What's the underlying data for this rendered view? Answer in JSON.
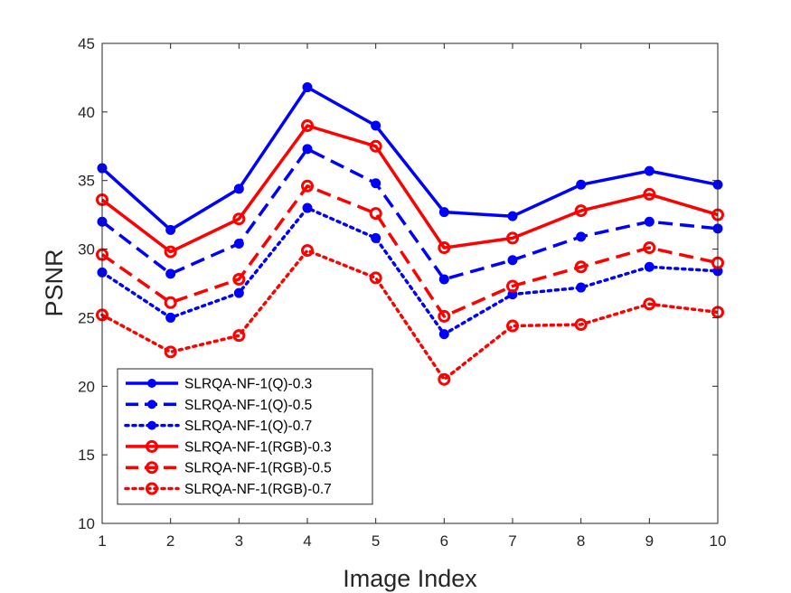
{
  "chart_data": {
    "type": "line",
    "title": "",
    "xlabel": "Image Index",
    "ylabel": "PSNR",
    "xlim": [
      1,
      10
    ],
    "ylim": [
      10,
      45
    ],
    "x": [
      1,
      2,
      3,
      4,
      5,
      6,
      7,
      8,
      9,
      10
    ],
    "xticks": [
      "1",
      "2",
      "3",
      "4",
      "5",
      "6",
      "7",
      "8",
      "9",
      "10"
    ],
    "yticks": [
      "10",
      "15",
      "20",
      "25",
      "30",
      "35",
      "40",
      "45"
    ],
    "grid": false,
    "legend_position": "bottom-left",
    "series": [
      {
        "name": "SLRQA-NF-1(Q)-0.3",
        "color": "#0000ff",
        "line_style": "solid",
        "marker": "filled-circle",
        "values": [
          35.9,
          31.4,
          34.4,
          41.8,
          39.0,
          32.7,
          32.4,
          34.7,
          35.7,
          34.7
        ]
      },
      {
        "name": "SLRQA-NF-1(Q)-0.5",
        "color": "#0000ff",
        "line_style": "dashed",
        "marker": "filled-circle",
        "values": [
          32.0,
          28.2,
          30.4,
          37.3,
          34.8,
          27.8,
          29.2,
          30.9,
          32.0,
          31.5
        ]
      },
      {
        "name": "SLRQA-NF-1(Q)-0.7",
        "color": "#0000ff",
        "line_style": "dotted",
        "marker": "filled-circle",
        "values": [
          28.3,
          25.0,
          26.8,
          33.0,
          30.8,
          23.8,
          26.7,
          27.2,
          28.7,
          28.4
        ]
      },
      {
        "name": "SLRQA-NF-1(RGB)-0.3",
        "color": "#ff0000",
        "line_style": "solid",
        "marker": "open-circle",
        "values": [
          33.6,
          29.8,
          32.2,
          39.0,
          37.5,
          30.1,
          30.8,
          32.8,
          34.0,
          32.5
        ]
      },
      {
        "name": "SLRQA-NF-1(RGB)-0.5",
        "color": "#ff0000",
        "line_style": "dashed",
        "marker": "open-circle",
        "values": [
          29.6,
          26.1,
          27.8,
          34.6,
          32.6,
          25.1,
          27.3,
          28.7,
          30.1,
          29.0
        ]
      },
      {
        "name": "SLRQA-NF-1(RGB)-0.7",
        "color": "#ff0000",
        "line_style": "dotted",
        "marker": "open-circle",
        "values": [
          25.2,
          22.5,
          23.7,
          29.9,
          27.9,
          20.5,
          24.4,
          24.5,
          26.0,
          25.4
        ]
      }
    ]
  }
}
